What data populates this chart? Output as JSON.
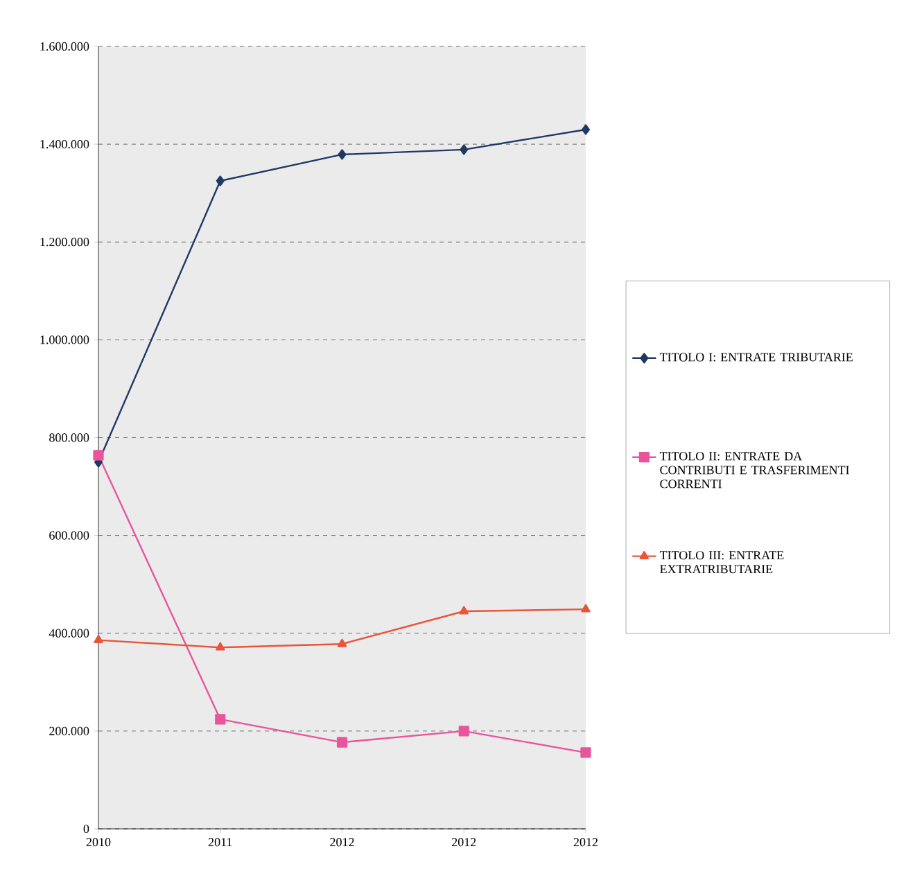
{
  "chart_data": {
    "type": "line",
    "categories": [
      "2010",
      "2011",
      "2012",
      "2012",
      "2012"
    ],
    "series": [
      {
        "name": "TITOLO I: ENTRATE TRIBUTARIE",
        "color": "#1f3864",
        "marker": "diamond",
        "values": [
          750000,
          1325000,
          1379000,
          1389000,
          1430000
        ]
      },
      {
        "name": "TITOLO II: ENTRATE DA CONTRIBUTI E TRASFERIMENTI CORRENTI",
        "color": "#e8559a",
        "marker": "square",
        "values": [
          764000,
          224000,
          177000,
          200000,
          156000
        ]
      },
      {
        "name": "TITOLO III: ENTRATE EXTRATRIBUTARIE",
        "color": "#e8553a",
        "marker": "triangle",
        "values": [
          386000,
          371000,
          378000,
          445000,
          449000
        ]
      }
    ],
    "ylim": [
      0,
      1600000
    ],
    "yticks": [
      0,
      {
        "value": 200000,
        "label": "200.000"
      },
      {
        "value": 400000,
        "label": "400.000"
      },
      {
        "value": 600000,
        "label": "600.000"
      },
      {
        "value": 800000,
        "label": "800.000"
      },
      {
        "value": 1000000,
        "label": "1.000.000"
      },
      {
        "value": 1200000,
        "label": "1.200.000"
      },
      {
        "value": 1400000,
        "label": "1.400.000"
      },
      {
        "value": 1600000,
        "label": "1.600.000"
      }
    ],
    "grid": "y",
    "legend": "right",
    "line_style": "solid"
  }
}
